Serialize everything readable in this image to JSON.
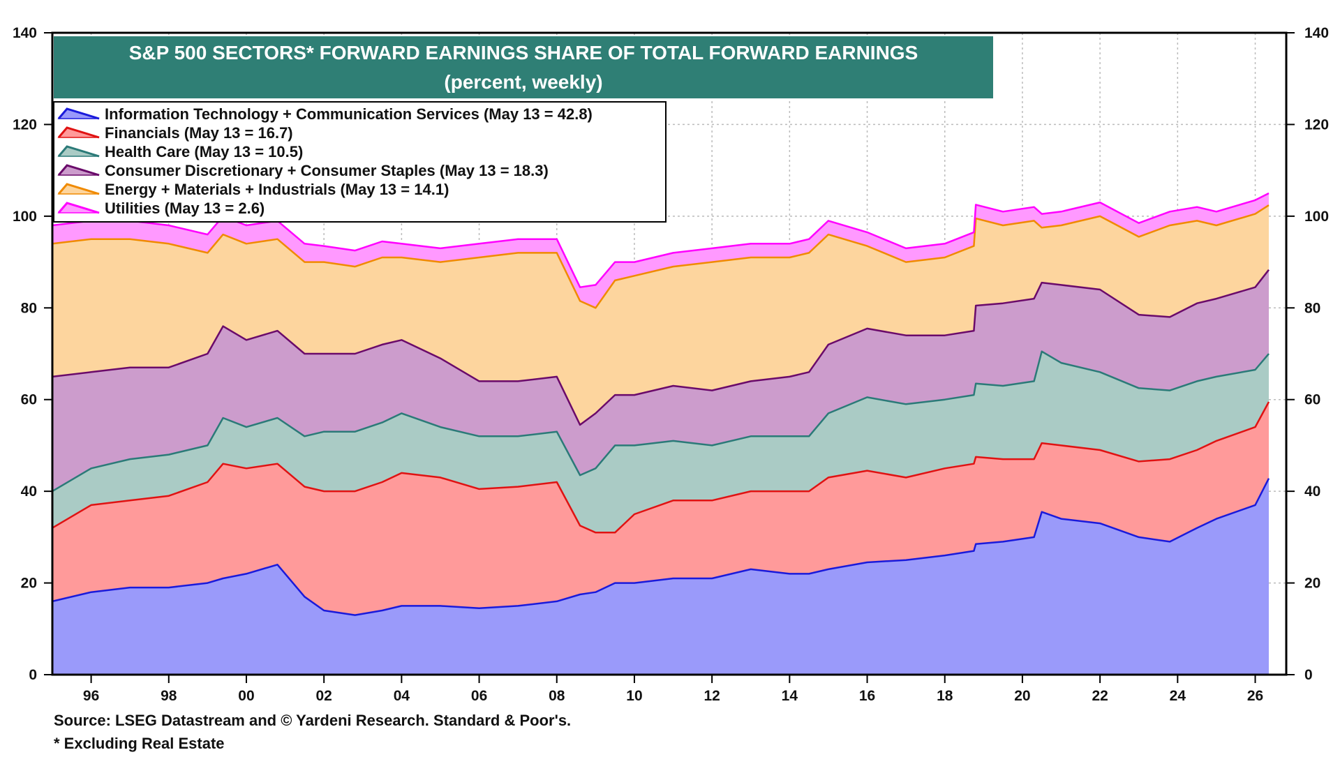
{
  "chart_data": {
    "type": "area",
    "stacked": true,
    "title": "S&P 500 SECTORS* FORWARD EARNINGS SHARE OF TOTAL FORWARD EARNINGS",
    "subtitle": "(percent, weekly)",
    "xlabel": "",
    "ylabel": "",
    "ylim": [
      0,
      140
    ],
    "yticks": [
      0,
      20,
      40,
      60,
      80,
      100,
      120,
      140
    ],
    "xlim": [
      1995.0,
      2026.8
    ],
    "xticks": [
      {
        "value": 1996,
        "label": "96"
      },
      {
        "value": 1998,
        "label": "98"
      },
      {
        "value": 2000,
        "label": "00"
      },
      {
        "value": 2002,
        "label": "02"
      },
      {
        "value": 2004,
        "label": "04"
      },
      {
        "value": 2006,
        "label": "06"
      },
      {
        "value": 2008,
        "label": "08"
      },
      {
        "value": 2010,
        "label": "10"
      },
      {
        "value": 2012,
        "label": "12"
      },
      {
        "value": 2014,
        "label": "14"
      },
      {
        "value": 2016,
        "label": "16"
      },
      {
        "value": 2018,
        "label": "18"
      },
      {
        "value": 2020,
        "label": "20"
      },
      {
        "value": 2022,
        "label": "22"
      },
      {
        "value": 2024,
        "label": "24"
      },
      {
        "value": 2026,
        "label": "26"
      }
    ],
    "grid": true,
    "legend_position": "top-left",
    "x": [
      1995.0,
      1996.0,
      1997.0,
      1998.0,
      1999.0,
      1999.4,
      2000.0,
      2000.8,
      2001.5,
      2002.0,
      2002.8,
      2003.5,
      2004.0,
      2005.0,
      2006.0,
      2007.0,
      2008.0,
      2008.6,
      2009.0,
      2009.5,
      2010.0,
      2011.0,
      2012.0,
      2013.0,
      2014.0,
      2014.5,
      2015.0,
      2016.0,
      2017.0,
      2018.0,
      2018.75,
      2018.8,
      2019.5,
      2020.3,
      2020.5,
      2021.0,
      2022.0,
      2023.0,
      2023.8,
      2024.5,
      2025.0,
      2026.0,
      2026.35
    ],
    "series": [
      {
        "name": "Information Technology + Communication Services (May 13 = 42.8)",
        "color": "#1a1adb",
        "fill": "#9a9afa",
        "values": [
          16,
          18,
          19,
          19,
          20,
          21,
          22,
          24,
          17,
          14,
          13,
          14,
          15,
          15,
          14.5,
          15,
          16,
          17.5,
          18,
          20,
          20,
          21,
          21,
          23,
          22,
          22,
          23,
          24.5,
          25,
          26,
          27,
          28.5,
          29,
          30,
          35.5,
          34,
          33,
          30,
          29,
          32,
          34,
          37,
          42.8
        ]
      },
      {
        "name": "Financials (May 13 = 16.7)",
        "color": "#e01212",
        "fill": "#ff9a9a",
        "values": [
          16,
          19,
          19,
          20,
          22,
          25,
          23,
          22,
          24,
          26,
          27,
          28,
          29,
          28,
          26,
          26,
          26,
          15,
          13,
          11,
          15,
          17,
          17,
          17,
          18,
          18,
          20,
          20,
          18,
          19,
          19,
          19,
          18,
          17,
          15,
          16,
          16,
          16.5,
          18,
          17,
          17,
          17,
          16.7
        ]
      },
      {
        "name": "Health Care (May 13 = 10.5)",
        "color": "#2b7a78",
        "fill": "#aacbc5",
        "values": [
          8,
          8,
          9,
          9,
          8,
          10,
          9,
          10,
          11,
          13,
          13,
          13,
          13,
          11,
          11.5,
          11,
          11,
          11,
          14,
          19,
          15,
          13,
          12,
          12,
          12,
          12,
          14,
          16,
          16,
          15,
          15,
          16,
          16,
          17,
          20,
          18,
          17,
          16,
          15,
          15,
          14,
          12.5,
          10.5
        ]
      },
      {
        "name": "Consumer Discretionary + Consumer Staples (May 13 = 18.3)",
        "color": "#6a0a6a",
        "fill": "#cc9ccc",
        "values": [
          25,
          21,
          20,
          19,
          20,
          20,
          19,
          19,
          18,
          17,
          17,
          17,
          16,
          15,
          12,
          12,
          12,
          11,
          12,
          11,
          11,
          12,
          12,
          12,
          13,
          14,
          15,
          15,
          15,
          14,
          14,
          17,
          18,
          18,
          15,
          17,
          18,
          16,
          16,
          17,
          17,
          18,
          18.3
        ]
      },
      {
        "name": "Energy + Materials + Industrials (May 13 = 14.1)",
        "color": "#f08a00",
        "fill": "#fdd59e",
        "values": [
          29,
          29,
          28,
          27,
          22,
          20,
          21,
          20,
          20,
          20,
          19,
          19,
          18,
          21,
          27,
          28,
          27,
          27,
          23,
          25,
          26,
          26,
          28,
          27,
          26,
          26,
          24,
          18,
          16,
          17,
          18.5,
          19,
          17,
          17,
          12,
          13,
          16,
          17,
          20,
          18,
          16,
          16,
          14.1
        ]
      },
      {
        "name": "Utilities (May 13 = 2.6)",
        "color": "#ff00ff",
        "fill": "#ff99ff",
        "values": [
          4,
          4,
          4,
          4,
          4,
          4,
          4,
          4,
          4,
          3.5,
          3.5,
          3.5,
          3,
          3,
          3,
          3,
          3,
          3,
          5,
          4,
          3,
          3,
          3,
          3,
          3,
          3,
          3,
          3,
          3,
          3,
          3,
          3,
          3,
          3,
          3,
          3,
          3,
          3,
          3,
          3,
          3,
          3,
          2.6
        ]
      }
    ]
  },
  "notes": {
    "source": "Source: LSEG Datastream and © Yardeni Research. Standard & Poor's.",
    "footnote": "* Excluding Real Estate"
  },
  "colors": {
    "title_background": "#2f7f75",
    "title_text": "#ffffff",
    "grid": "#bbbbbb"
  }
}
